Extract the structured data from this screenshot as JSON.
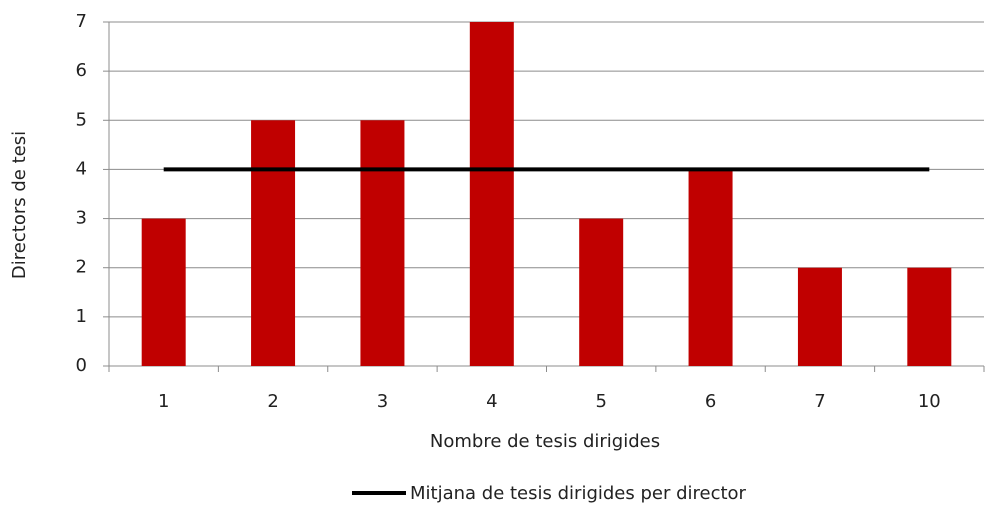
{
  "chart_data": {
    "type": "bar",
    "y_axis_label": "Directors de tesi",
    "x_axis_label": "Nombre de tesis dirigides",
    "categories": [
      "1",
      "2",
      "3",
      "4",
      "5",
      "6",
      "7",
      "10"
    ],
    "series": [
      {
        "type": "bar",
        "color": "#c00000",
        "values": [
          3,
          5,
          5,
          7,
          3,
          4,
          2,
          2
        ]
      },
      {
        "type": "line",
        "name": "Mitjana de tesis dirigides per director",
        "color": "#000000",
        "values": [
          4,
          4,
          4,
          4,
          4,
          4,
          4,
          4
        ]
      }
    ],
    "ylim": [
      0,
      7
    ],
    "yticks": [
      0,
      1,
      2,
      3,
      4,
      5,
      6,
      7
    ],
    "grid": true,
    "legend": "bottom"
  }
}
